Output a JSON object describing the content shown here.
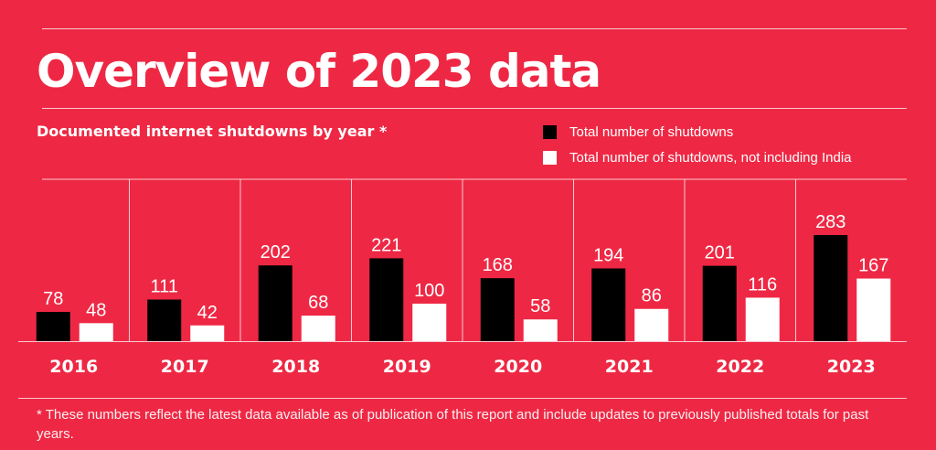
{
  "header": {
    "title": "Overview of 2023 data",
    "subtitle": "Documented internet shutdowns by year *"
  },
  "colors": {
    "background": "#EE2844",
    "total": "#000000",
    "excluding_india": "#FFFFFF"
  },
  "footnote": "* These numbers reflect the latest data available as of publication of this report and include updates to previously published totals for past years.",
  "chart_data": {
    "type": "bar",
    "title": "Documented internet shutdowns by year *",
    "xlabel": "",
    "ylabel": "",
    "categories": [
      "2016",
      "2017",
      "2018",
      "2019",
      "2020",
      "2021",
      "2022",
      "2023"
    ],
    "series": [
      {
        "name": "Total number of shutdowns",
        "color": "#000000",
        "values": [
          78,
          111,
          202,
          221,
          168,
          194,
          201,
          283
        ]
      },
      {
        "name": "Total number of shutdowns, not including India",
        "color": "#FFFFFF",
        "values": [
          48,
          42,
          68,
          100,
          58,
          86,
          116,
          167
        ]
      }
    ],
    "ylim": [
      0,
      283
    ],
    "grid": false,
    "legend": "top-right",
    "data_labels": true
  }
}
